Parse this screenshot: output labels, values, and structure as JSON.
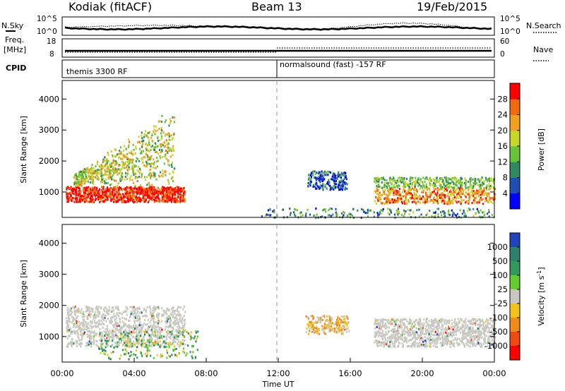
{
  "header": {
    "station": "Kodiak (fitACF)",
    "beam": "Beam 13",
    "date": "19/Feb/2015"
  },
  "noise_panel": {
    "left_label": "N.Sky",
    "right_label": "N.Search",
    "left_ticks": [
      "10^5",
      "10^0"
    ],
    "right_ticks": [
      "10^5",
      "10^0"
    ]
  },
  "freq_panel": {
    "left_label_1": "Freq.",
    "left_label_2": "[MHz]",
    "right_label": "Nave",
    "left_ticks": [
      "18",
      "8"
    ],
    "right_ticks": [
      "60",
      "0"
    ]
  },
  "cpid_panel": {
    "label": "CPID",
    "mode_1": "themis 3300 RF",
    "mode_2": "normalsound (fast) -157 RF"
  },
  "colors": {
    "power_scale": [
      "#0000ff",
      "#1f4fb3",
      "#2f8a5f",
      "#68c23a",
      "#c6d62a",
      "#f0a01e",
      "#f26a10",
      "#ff0000"
    ],
    "velocity_scale": [
      "#2244bb",
      "#2f7f6a",
      "#33995a",
      "#66cc33",
      "#c8c8c0",
      "#f2c21a",
      "#f08a1a",
      "#f04a14",
      "#ff0000"
    ]
  },
  "chart_data": [
    {
      "type": "heatmap",
      "title": "",
      "xlabel": "",
      "ylabel": "Slant Range [km]",
      "xlim": [
        0,
        24
      ],
      "ylim": [
        180,
        4600
      ],
      "y_ticks": [
        1000,
        2000,
        3000,
        4000
      ],
      "colorbar": {
        "label": "Power [dB]",
        "ticks": [
          "4",
          "8",
          "12",
          "16",
          "20",
          "24",
          "28"
        ],
        "range": [
          0,
          30
        ]
      },
      "features": [
        {
          "name": "main band",
          "t_start": 0.2,
          "t_end": 6.8,
          "range_km": [
            700,
            1200
          ],
          "value": 28
        },
        {
          "name": "upper streaks",
          "t_start": 0.6,
          "t_end": 6.2,
          "range_km": [
            1200,
            3500
          ],
          "value": 16
        },
        {
          "name": "afternoon band",
          "t_start": 17.3,
          "t_end": 24.0,
          "range_km": [
            650,
            1500
          ],
          "value": 22
        },
        {
          "name": "afternoon patch",
          "t_start": 13.6,
          "t_end": 15.8,
          "range_km": [
            1100,
            1700
          ],
          "value": 6
        },
        {
          "name": "near-range echoes",
          "t_start": 11.0,
          "t_end": 24.0,
          "range_km": [
            200,
            500
          ],
          "value": 10
        }
      ]
    },
    {
      "type": "heatmap",
      "title": "",
      "xlabel": "Time UT",
      "ylabel": "Slant Range [km]",
      "xlim": [
        0,
        24
      ],
      "ylim": [
        180,
        4600
      ],
      "x_ticks": [
        "00:00",
        "04:00",
        "08:00",
        "12:00",
        "16:00",
        "20:00",
        "00:00"
      ],
      "y_ticks": [
        1000,
        2000,
        3000,
        4000
      ],
      "colorbar": {
        "label": "Velocity [m s^-1]",
        "ticks": [
          "1000",
          "500",
          "100",
          "25",
          "-25",
          "-100",
          "-500",
          "-1000"
        ]
      },
      "features": [
        {
          "name": "ground scatter",
          "t_start": 0.2,
          "t_end": 6.8,
          "range_km": [
            700,
            2000
          ],
          "value": 0
        },
        {
          "name": "ionospheric echoes",
          "t_start": 2.0,
          "t_end": 7.5,
          "range_km": [
            300,
            1200
          ],
          "value": 120
        },
        {
          "name": "afternoon ground scatter",
          "t_start": 17.3,
          "t_end": 24.0,
          "range_km": [
            700,
            1600
          ],
          "value": 0
        },
        {
          "name": "afternoon flow patch",
          "t_start": 13.5,
          "t_end": 15.9,
          "range_km": [
            1100,
            1700
          ],
          "value": -200
        }
      ]
    }
  ],
  "time_label": "Time UT"
}
